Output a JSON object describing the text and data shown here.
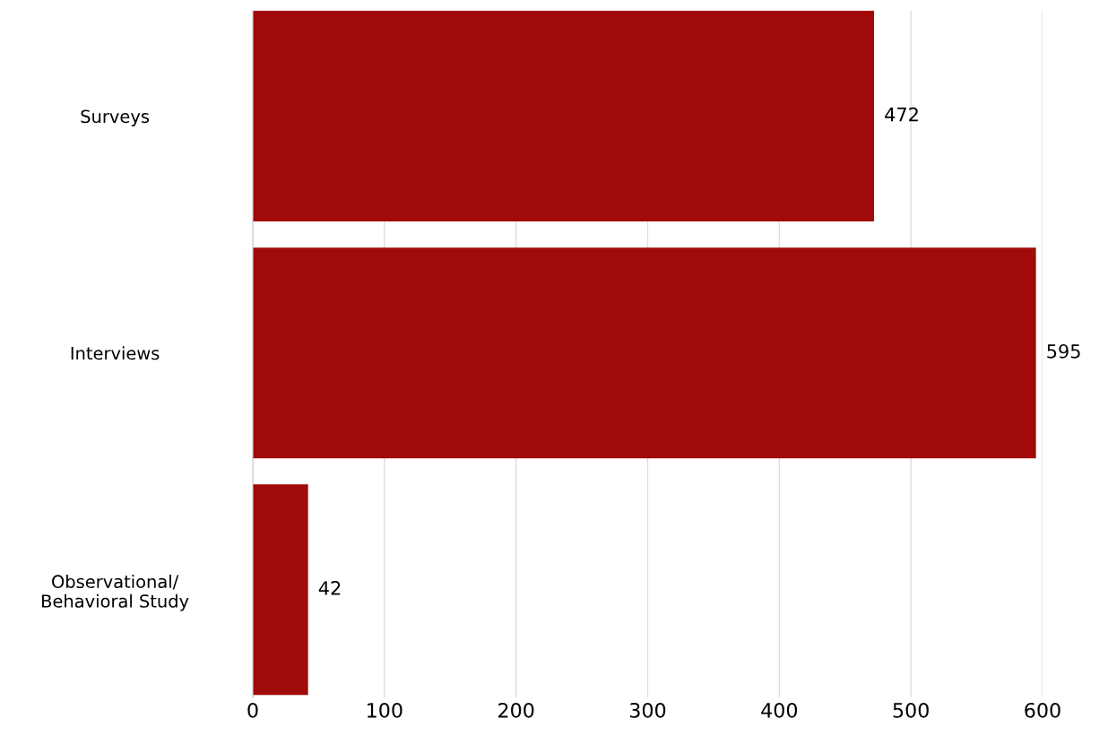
{
  "chart_data": {
    "type": "bar",
    "orientation": "horizontal",
    "categories": [
      "Surveys",
      "Interviews",
      "Observational/\nBehavioral Study"
    ],
    "values": [
      472,
      595,
      42
    ],
    "color": "#a00a0a",
    "xlim": [
      0,
      600
    ],
    "xticks": [
      0,
      100,
      200,
      300,
      400,
      500,
      600
    ],
    "grid": "x",
    "data_labels": true
  }
}
